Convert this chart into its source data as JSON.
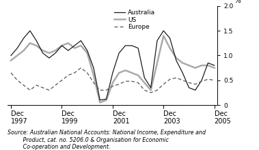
{
  "title": "",
  "ylabel": "%",
  "ylim": [
    0,
    2.0
  ],
  "yticks": [
    0,
    0.5,
    1.0,
    1.5,
    2.0
  ],
  "ytick_labels": [
    "0",
    "0.5",
    "1.0",
    "1.5",
    "2.0"
  ],
  "background_color": "#ffffff",
  "source_text": "Source: Australian National Accounts: National Income, Expenditure and\n         Product, cat. no. 5206.0 & Organisation for Economic\n         Co-operation and Development.",
  "xtick_positions": [
    0,
    8,
    16,
    24,
    32
  ],
  "xtick_labels": [
    "Dec\n1997",
    "Dec\n1999",
    "Dec\n2001",
    "Dec\n2003",
    "Dec\n2005"
  ],
  "australia": [
    1.0,
    1.15,
    1.35,
    1.5,
    1.3,
    1.05,
    0.95,
    1.05,
    1.2,
    1.1,
    1.2,
    1.3,
    1.1,
    0.75,
    0.1,
    0.12,
    0.65,
    1.05,
    1.2,
    1.2,
    1.15,
    0.55,
    0.35,
    1.3,
    1.5,
    1.35,
    0.9,
    0.65,
    0.35,
    0.3,
    0.5,
    0.85,
    0.8
  ],
  "us": [
    0.9,
    1.0,
    1.1,
    1.25,
    1.2,
    1.1,
    1.05,
    1.1,
    1.2,
    1.25,
    1.15,
    1.2,
    1.05,
    0.6,
    0.05,
    0.1,
    0.45,
    0.65,
    0.7,
    0.65,
    0.6,
    0.45,
    0.3,
    0.85,
    1.4,
    1.15,
    0.95,
    0.85,
    0.8,
    0.75,
    0.8,
    0.8,
    0.75
  ],
  "europe": [
    0.65,
    0.5,
    0.4,
    0.3,
    0.4,
    0.35,
    0.3,
    0.4,
    0.5,
    0.6,
    0.65,
    0.75,
    0.65,
    0.45,
    0.3,
    0.3,
    0.38,
    0.42,
    0.48,
    0.48,
    0.45,
    0.3,
    0.25,
    0.3,
    0.42,
    0.52,
    0.55,
    0.5,
    0.45,
    0.42,
    0.48,
    0.52,
    0.5
  ],
  "australia_color": "#1a1a1a",
  "us_color": "#aaaaaa",
  "europe_color": "#555555",
  "legend_labels": [
    "Australia",
    "US",
    "Europe"
  ]
}
